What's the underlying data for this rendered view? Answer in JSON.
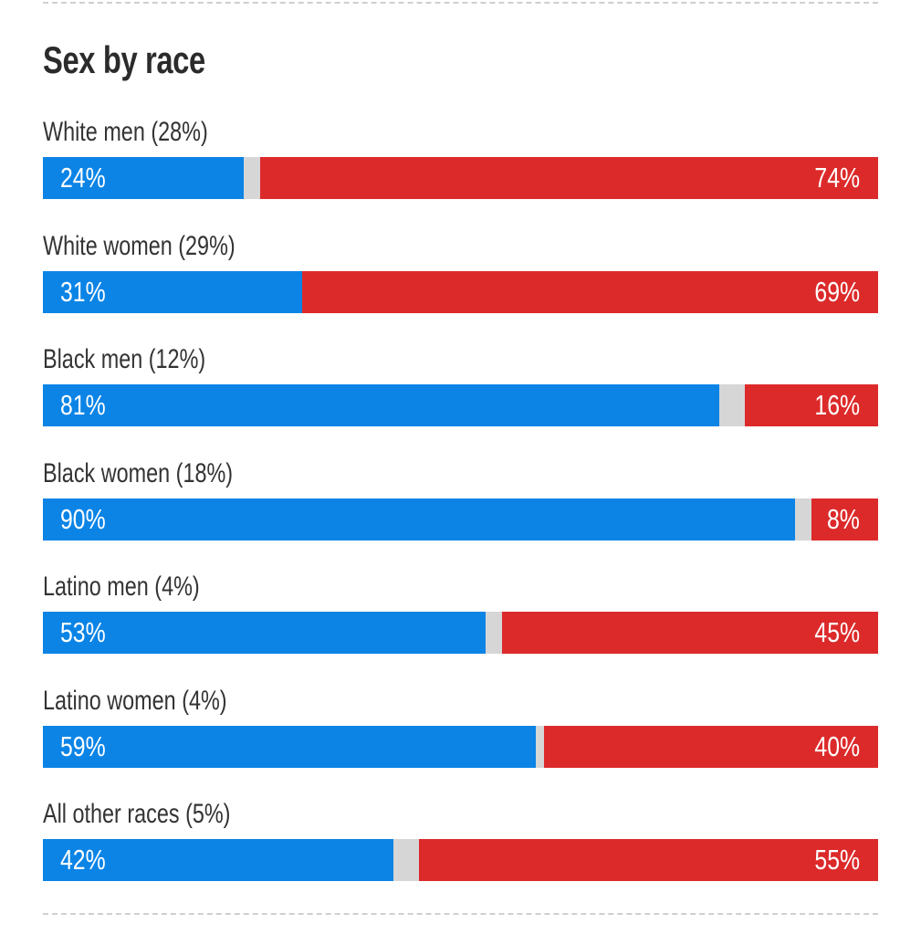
{
  "colors": {
    "dem": "#0b84e6",
    "rep": "#dc2a2a",
    "other": "#d6d6d6"
  },
  "chart_data": {
    "type": "bar",
    "stacked": true,
    "orientation": "horizontal",
    "title": "Sex by race",
    "categories": [
      "White men (28%)",
      "White women (29%)",
      "Black men (12%)",
      "Black women (18%)",
      "Latino men (4%)",
      "Latino women (4%)",
      "All other races (5%)"
    ],
    "series": [
      {
        "name": "Blue",
        "values": [
          24,
          31,
          81,
          90,
          53,
          59,
          42
        ]
      },
      {
        "name": "Red",
        "values": [
          74,
          69,
          16,
          8,
          45,
          40,
          55
        ]
      }
    ],
    "value_labels": {
      "blue": [
        "24%",
        "31%",
        "81%",
        "90%",
        "53%",
        "59%",
        "42%"
      ],
      "red": [
        "74%",
        "69%",
        "16%",
        "8%",
        "45%",
        "40%",
        "55%"
      ]
    },
    "xlim": [
      0,
      100
    ]
  }
}
